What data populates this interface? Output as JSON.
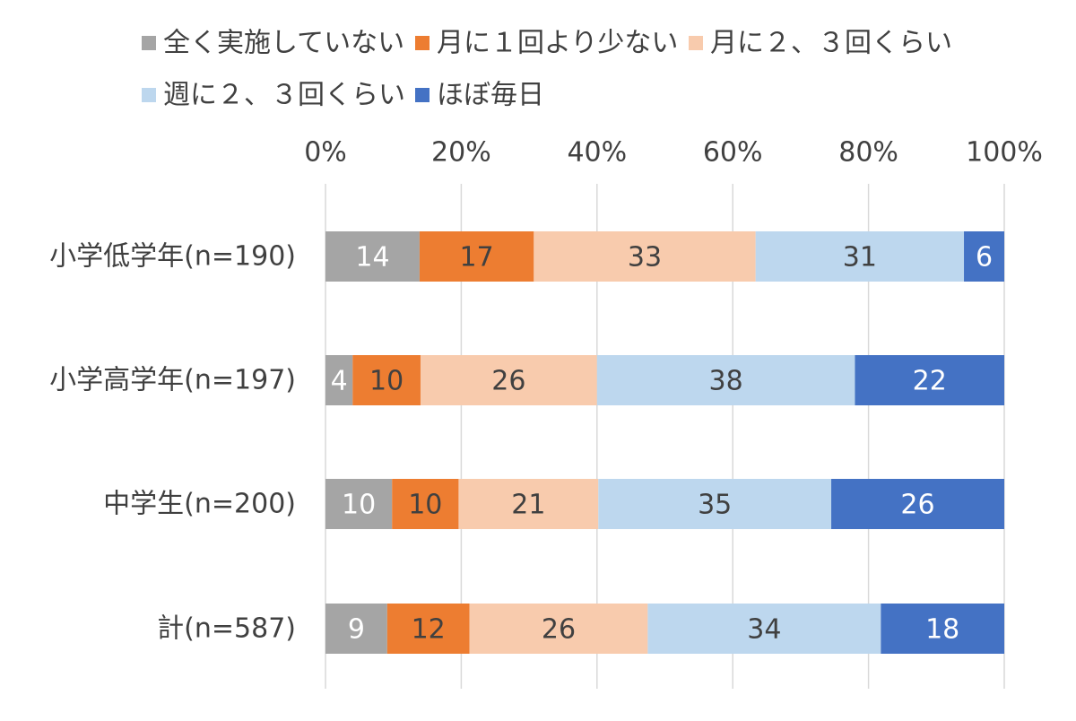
{
  "chart_data": {
    "type": "bar",
    "orientation": "horizontal",
    "stacked": true,
    "percent_stacked": true,
    "categories": [
      "小学低学年(n=190)",
      "小学高学年(n=197)",
      "中学生(n=200)",
      "計(n=587)"
    ],
    "series": [
      {
        "name": "全く実施していない",
        "color": "#a5a5a5",
        "label_color": "#ffffff",
        "values": [
          14,
          4,
          10,
          9
        ]
      },
      {
        "name": "月に１回より少ない",
        "color": "#ed7d31",
        "label_color": "#404040",
        "values": [
          17,
          10,
          10,
          12
        ]
      },
      {
        "name": "月に２、３回くらい",
        "color": "#f8cbad",
        "label_color": "#404040",
        "values": [
          33,
          26,
          21,
          26
        ]
      },
      {
        "name": "週に２、３回くらい",
        "color": "#bdd7ee",
        "label_color": "#404040",
        "values": [
          31,
          38,
          35,
          34
        ]
      },
      {
        "name": "ほぼ毎日",
        "color": "#4472c4",
        "label_color": "#ffffff",
        "values": [
          6,
          22,
          26,
          18
        ]
      }
    ],
    "x_ticks": [
      "0%",
      "20%",
      "40%",
      "60%",
      "80%",
      "100%"
    ],
    "xlim": [
      0,
      100
    ],
    "axis_position": "top",
    "grid": true,
    "legend_position": "top"
  }
}
